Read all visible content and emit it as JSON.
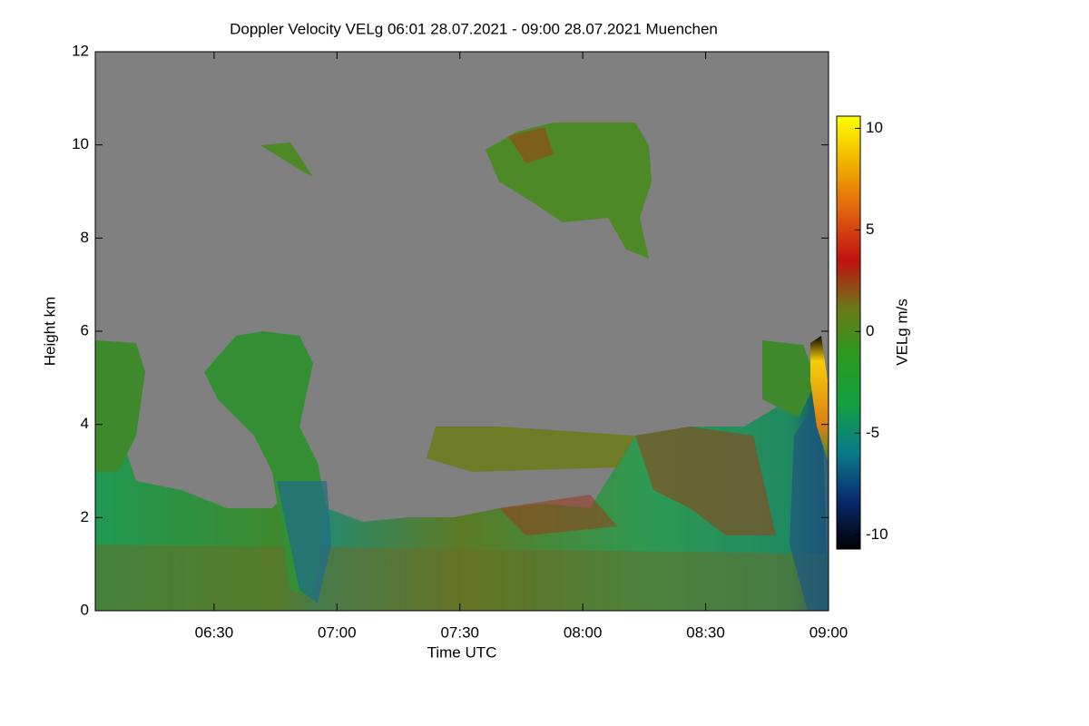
{
  "chart_data": {
    "type": "time-height",
    "title": "Doppler Velocity VELg   06:01 28.07.2021 - 09:00 28.07.2021 Muenchen",
    "x_label": "Time UTC",
    "y_label": "Height km",
    "xlim": [
      361,
      540
    ],
    "xticks": [
      {
        "value": 390,
        "label": "06:30"
      },
      {
        "value": 420,
        "label": "07:00"
      },
      {
        "value": 450,
        "label": "07:30"
      },
      {
        "value": 480,
        "label": "08:00"
      },
      {
        "value": 510,
        "label": "08:30"
      },
      {
        "value": 540,
        "label": "09:00"
      }
    ],
    "ylim": [
      0,
      12
    ],
    "yticks": [
      0,
      2,
      4,
      6,
      8,
      10,
      12
    ],
    "background_color": "#808080",
    "colorbar": {
      "label": "VELg m/s",
      "lim": [
        -10.7,
        10.6
      ],
      "ticks": [
        -10,
        -5,
        0,
        5,
        10
      ],
      "colors": [
        "#000000",
        "#0a2a6e",
        "#0a7a8a",
        "#12a040",
        "#2a9a20",
        "#6a7a18",
        "#c01010",
        "#e06010",
        "#f0b000",
        "#ffff00"
      ]
    }
  }
}
